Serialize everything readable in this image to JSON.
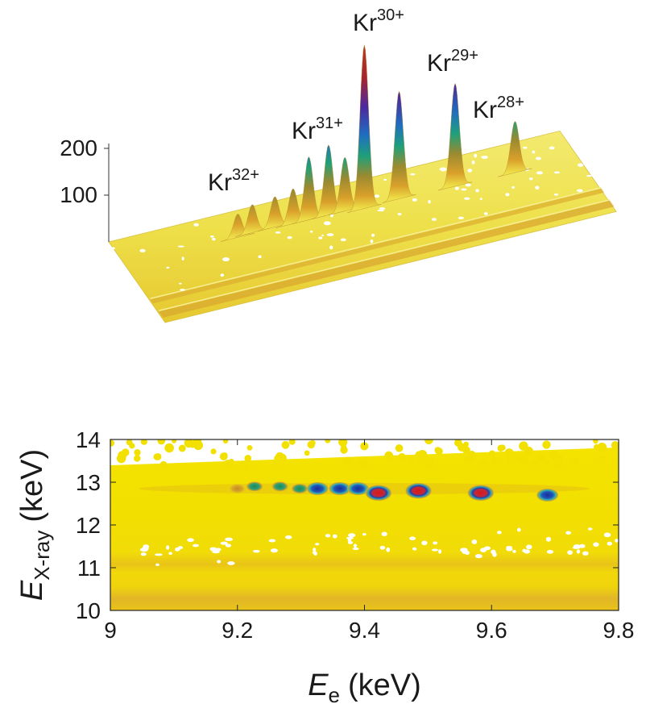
{
  "chart_data": [
    {
      "type": "surface3d",
      "zticks": [
        100,
        200
      ],
      "x": [
        9.2,
        9.227,
        9.267,
        9.298,
        9.326,
        9.361,
        9.39,
        9.422,
        9.485,
        9.583,
        9.688
      ],
      "y": [
        12.85,
        12.9,
        12.9,
        12.85,
        12.85,
        12.85,
        12.85,
        12.75,
        12.8,
        12.75,
        12.7
      ],
      "z": [
        50,
        60,
        65,
        75,
        135,
        150,
        115,
        350,
        230,
        220,
        110
      ],
      "annotations": [
        {
          "text": "Kr",
          "sup": "32+"
        },
        {
          "text": "Kr",
          "sup": "31+"
        },
        {
          "text": "Kr",
          "sup": "30+"
        },
        {
          "text": "Kr",
          "sup": "29+"
        },
        {
          "text": "Kr",
          "sup": "28+"
        }
      ]
    },
    {
      "type": "heatmap",
      "xlim": [
        9,
        9.8
      ],
      "ylim": [
        10,
        14
      ],
      "xticks": [
        9,
        9.2,
        9.4,
        9.6,
        9.8
      ],
      "yticks": [
        10,
        11,
        12,
        13,
        14
      ],
      "xlabel": {
        "symbol": "E",
        "subscript": "e",
        "unit": "(keV)"
      },
      "ylabel": {
        "symbol": "E",
        "subscript": "X-ray",
        "unit": "(keV)"
      },
      "x": [
        9.2,
        9.227,
        9.267,
        9.298,
        9.326,
        9.361,
        9.39,
        9.422,
        9.485,
        9.583,
        9.688
      ],
      "y": [
        12.85,
        12.9,
        12.9,
        12.85,
        12.85,
        12.85,
        12.85,
        12.75,
        12.8,
        12.75,
        12.7
      ],
      "intensity": [
        50,
        60,
        65,
        75,
        135,
        150,
        115,
        350,
        230,
        220,
        110
      ]
    }
  ]
}
